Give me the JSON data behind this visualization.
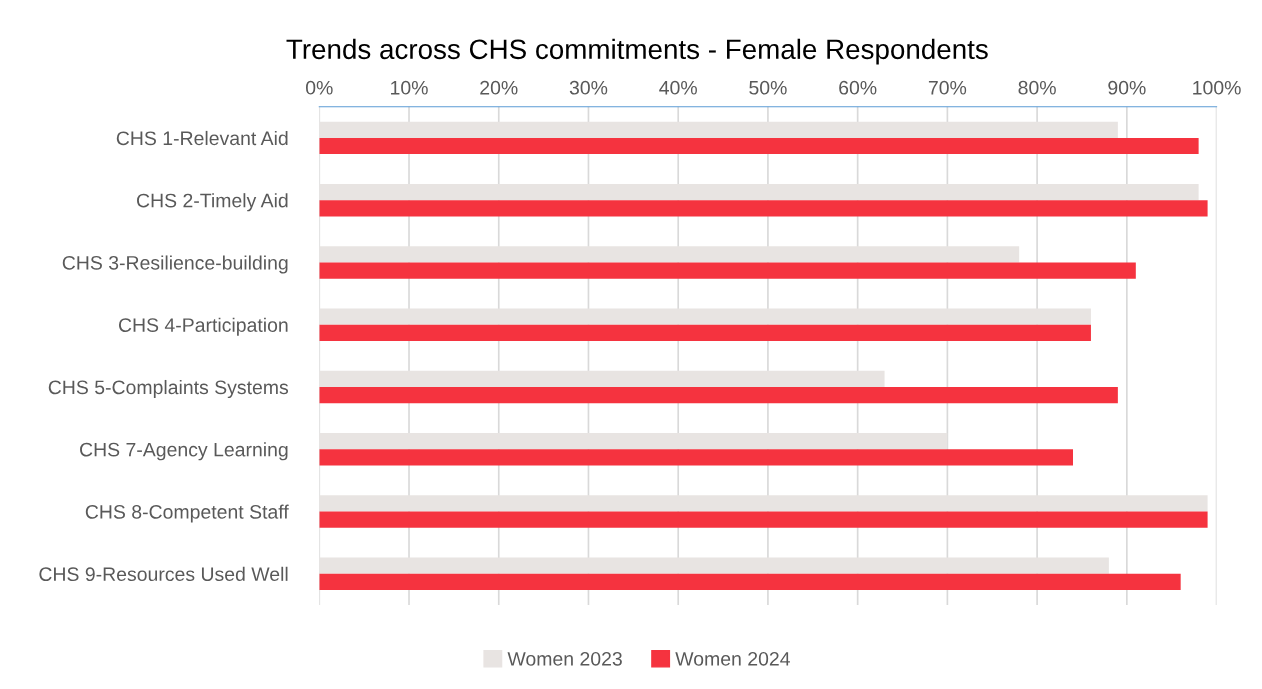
{
  "chart_data": {
    "type": "bar",
    "orientation": "horizontal",
    "title": "Trends across CHS commitments - Female Respondents",
    "categories": [
      "CHS 1-Relevant Aid",
      "CHS 2-Timely Aid",
      "CHS 3-Resilience-building",
      "CHS 4-Participation",
      "CHS 5-Complaints Systems",
      "CHS 7-Agency Learning",
      "CHS 8-Competent Staff",
      "CHS 9-Resources Used Well"
    ],
    "series": [
      {
        "name": "Women 2023",
        "color": "#e8e4e2",
        "values": [
          89,
          98,
          78,
          86,
          63,
          70,
          99,
          88
        ]
      },
      {
        "name": "Women 2024",
        "color": "#f5333f",
        "values": [
          98,
          99,
          91,
          86,
          89,
          84,
          99,
          96
        ]
      }
    ],
    "xlim": [
      0,
      100
    ],
    "xticks": [
      {
        "value": 0,
        "label": "0%"
      },
      {
        "value": 10,
        "label": "10%"
      },
      {
        "value": 20,
        "label": "20%"
      },
      {
        "value": 30,
        "label": "30%"
      },
      {
        "value": 40,
        "label": "40%"
      },
      {
        "value": 50,
        "label": "50%"
      },
      {
        "value": 60,
        "label": "60%"
      },
      {
        "value": 70,
        "label": "70%"
      },
      {
        "value": 80,
        "label": "80%"
      },
      {
        "value": 90,
        "label": "90%"
      },
      {
        "value": 100,
        "label": "100%"
      }
    ],
    "grid": "x",
    "legend": "bottom"
  }
}
